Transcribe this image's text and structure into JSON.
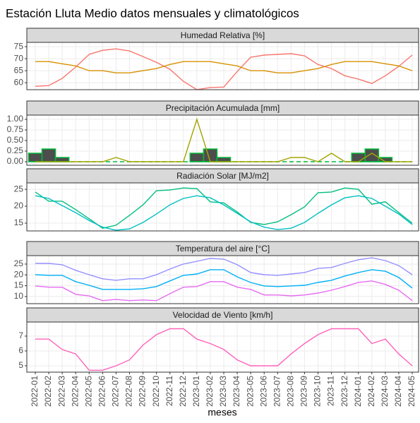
{
  "title": "Estación Lluta Medio datos mensuales y climatológicos",
  "x_label": "meses",
  "categories": [
    "2022-01",
    "2022-02",
    "2022-03",
    "2022-04",
    "2022-05",
    "2022-06",
    "2022-07",
    "2022-08",
    "2022-09",
    "2022-10",
    "2022-11",
    "2022-12",
    "2023-01",
    "2023-02",
    "2023-03",
    "2023-04",
    "2023-05",
    "2023-06",
    "2023-07",
    "2023-08",
    "2023-09",
    "2023-10",
    "2023-11",
    "2023-12",
    "2024-01",
    "2024-02",
    "2024-03",
    "2024-04",
    "2024-05"
  ],
  "chart_data": [
    {
      "type": "line",
      "title": "Humedad Relativa [%]",
      "ylim": [
        57.1,
        76.8
      ],
      "yticks": [
        60,
        65,
        70,
        75
      ],
      "grid": true,
      "series": [
        {
          "color": "#F8766D",
          "values": [
            58.5,
            58.8,
            61.8,
            66.5,
            71.8,
            73.5,
            74.1,
            73.2,
            70.9,
            68.5,
            65.6,
            60.6,
            57.1,
            58,
            58.2,
            64.7,
            70.6,
            71.5,
            71.8,
            72.1,
            71.2,
            67.6,
            65.9,
            62.9,
            61.5,
            59.7,
            62.9,
            66.8,
            71.5
          ]
        },
        {
          "color": "#D89000",
          "values": [
            68.8,
            68.8,
            67.9,
            67,
            65,
            65,
            64.1,
            64.1,
            65,
            65.9,
            67.6,
            68.8,
            68.8,
            68.8,
            67.9,
            67,
            65,
            65,
            64.1,
            64.1,
            65,
            65.9,
            67.6,
            68.8,
            68.8,
            68.8,
            67.9,
            67,
            65
          ]
        }
      ]
    },
    {
      "type": "line",
      "title": "Precipitación Acumulada [mm]",
      "ylim": [
        -0.083,
        1.1
      ],
      "yticks": [
        {
          "value": 0,
          "label": "0.00"
        },
        {
          "value": 0.25,
          "label": "0.25"
        },
        {
          "value": 0.5,
          "label": "0.50"
        },
        {
          "value": 0.75,
          "label": "0.75"
        },
        {
          "value": 1,
          "label": "1.00"
        }
      ],
      "grid": true,
      "series": [
        {
          "type": "bar",
          "color": "#4D4D4D",
          "stroke": "#00BA38",
          "values": [
            0.2,
            0.3,
            0.1,
            0,
            0,
            0,
            0,
            0,
            0,
            0,
            0,
            0,
            0.2,
            0.3,
            0.1,
            0,
            0,
            0,
            0,
            0,
            0,
            0,
            0,
            0,
            0.2,
            0.3,
            0.1,
            0,
            0
          ]
        },
        {
          "color": "#00BA38",
          "dash": true,
          "values": [
            0,
            0,
            0,
            0,
            0,
            0,
            0,
            0,
            0,
            0,
            0,
            0,
            0,
            0,
            0,
            0,
            0,
            0,
            0,
            0,
            0,
            0,
            0,
            0,
            0,
            0,
            0,
            0,
            0
          ]
        },
        {
          "color": "#A3A500",
          "values": [
            0,
            0,
            0,
            0,
            0,
            0,
            0.1,
            0,
            0,
            0,
            0,
            0,
            1,
            0,
            0,
            0,
            0,
            0,
            0,
            0.1,
            0.1,
            0,
            0.2,
            0,
            0,
            0.2,
            0,
            0,
            0
          ]
        }
      ]
    },
    {
      "type": "line",
      "title": "Radiación Solar [MJ/m2]",
      "ylim": [
        12.7,
        26.9
      ],
      "yticks": [
        15,
        20,
        25
      ],
      "grid": true,
      "series": [
        {
          "color": "#00BF7D",
          "values": [
            24.2,
            21.5,
            21.5,
            19,
            16.3,
            13.5,
            14.4,
            17.3,
            20.4,
            24.6,
            24.8,
            25.4,
            25.2,
            21.3,
            21,
            18.3,
            15.2,
            14.6,
            15.4,
            17.5,
            19.8,
            24,
            24.2,
            25.4,
            25,
            20.6,
            21.3,
            18.1,
            15
          ]
        },
        {
          "color": "#00BFC4",
          "values": [
            23.1,
            22.3,
            20.2,
            18.1,
            15.8,
            13.8,
            12.9,
            13.3,
            15.2,
            17.7,
            20.4,
            22.3,
            23.1,
            22.5,
            20.4,
            17.9,
            15.4,
            13.8,
            13.1,
            13.5,
            15.2,
            17.9,
            20.4,
            22.5,
            23.1,
            22.3,
            20,
            17.7,
            14.6
          ]
        }
      ]
    },
    {
      "type": "line",
      "title": "Temperatura del aire [°C]",
      "ylim": [
        6.7,
        28.9
      ],
      "yticks": [
        10,
        15,
        20,
        25
      ],
      "grid": true,
      "series": [
        {
          "color": "#9590FF",
          "values": [
            25.3,
            25.3,
            24.7,
            22.1,
            20.1,
            18.2,
            17.5,
            18.2,
            18.2,
            20.1,
            22.7,
            25,
            26.3,
            27.6,
            27.3,
            24.7,
            21.1,
            20.1,
            19.8,
            20.4,
            21.1,
            23,
            23.4,
            25.3,
            27,
            27.9,
            26.6,
            24.3,
            20.1
          ]
        },
        {
          "color": "#00B0F6",
          "values": [
            20.1,
            19.8,
            19.8,
            16.9,
            15.2,
            13.3,
            13.3,
            13.3,
            13.6,
            14.6,
            17.2,
            19.8,
            20.4,
            22.4,
            22.4,
            19.1,
            16.5,
            14.9,
            14.6,
            14.9,
            15.2,
            16.5,
            17.5,
            19.5,
            21.1,
            22.4,
            21.7,
            18.8,
            13.9
          ]
        },
        {
          "color": "#E76BF3",
          "values": [
            14.9,
            14.3,
            14.3,
            11,
            10.3,
            8.1,
            8.7,
            8.1,
            8.4,
            8.1,
            11.3,
            14.3,
            14.6,
            16.9,
            16.9,
            14.3,
            13.3,
            10.7,
            10.7,
            10.3,
            10.7,
            11.6,
            12.9,
            14.6,
            16.5,
            17.2,
            15.6,
            12.9,
            8.1
          ]
        }
      ]
    },
    {
      "type": "line",
      "title": "Velocidad de Viento [km/h]",
      "ylim": [
        4.57,
        7.95
      ],
      "yticks": [
        5,
        6,
        7
      ],
      "grid": true,
      "series": [
        {
          "color": "#FF62BC",
          "values": [
            6.8,
            6.8,
            6.1,
            5.8,
            4.7,
            4.7,
            5,
            5.4,
            6.4,
            7.1,
            7.5,
            7.5,
            6.8,
            6.5,
            6.1,
            5.4,
            5,
            5,
            5,
            5.8,
            6.5,
            7.1,
            7.5,
            7.5,
            7.5,
            6.5,
            6.8,
            5.8,
            5
          ]
        }
      ]
    }
  ]
}
